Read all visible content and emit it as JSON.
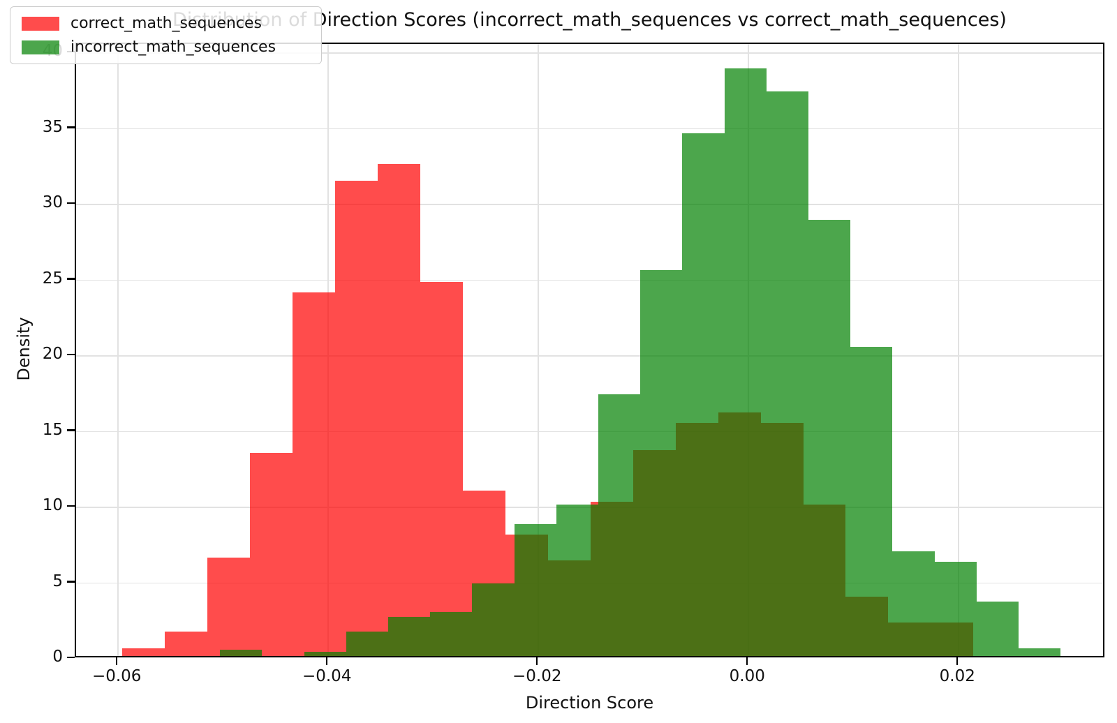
{
  "title": "Distribution of Direction Scores (incorrect_math_sequences vs correct_math_sequences)",
  "axis": {
    "xlabel": "Direction Score",
    "ylabel": "Density"
  },
  "legend": {
    "items": [
      {
        "label": "correct_math_sequences",
        "color": "rgba(255,0,0,0.7)"
      },
      {
        "label": "incorrect_math_sequences",
        "color": "rgba(0,128,0,0.7)"
      }
    ]
  },
  "chart_data": {
    "type": "histogram",
    "title": "Distribution of Direction Scores (incorrect_math_sequences vs correct_math_sequences)",
    "xlabel": "Direction Score",
    "ylabel": "Density",
    "xlim": [
      -0.064,
      0.034
    ],
    "ylim": [
      0,
      40.6
    ],
    "grid": true,
    "legend_position": "upper-left",
    "x_ticks": [
      {
        "value": -0.06,
        "label": "−0.06"
      },
      {
        "value": -0.04,
        "label": "−0.04"
      },
      {
        "value": -0.02,
        "label": "−0.02"
      },
      {
        "value": 0.0,
        "label": "0.00"
      },
      {
        "value": 0.02,
        "label": "0.02"
      }
    ],
    "y_ticks": [
      0,
      5,
      10,
      15,
      20,
      25,
      30,
      35,
      40
    ],
    "series": [
      {
        "name": "correct_math_sequences",
        "color": "rgba(255,0,0,0.7)",
        "bin_start": -0.0596,
        "bin_width": 0.00405,
        "densities": [
          0.5,
          1.6,
          6.5,
          13.4,
          24.0,
          31.4,
          32.5,
          24.7,
          10.9,
          8.0,
          6.3,
          10.2,
          13.6,
          15.4,
          16.1,
          15.4,
          10.0,
          3.9,
          2.2,
          2.2
        ]
      },
      {
        "name": "incorrect_math_sequences",
        "color": "rgba(0,128,0,0.7)",
        "bin_start": -0.0503,
        "bin_width": 0.004,
        "densities": [
          0.4,
          0.0,
          0.3,
          1.6,
          2.6,
          2.9,
          4.8,
          8.7,
          10.0,
          17.3,
          25.5,
          34.5,
          38.8,
          37.3,
          28.8,
          20.4,
          6.9,
          6.2,
          3.6,
          0.5
        ]
      }
    ]
  }
}
